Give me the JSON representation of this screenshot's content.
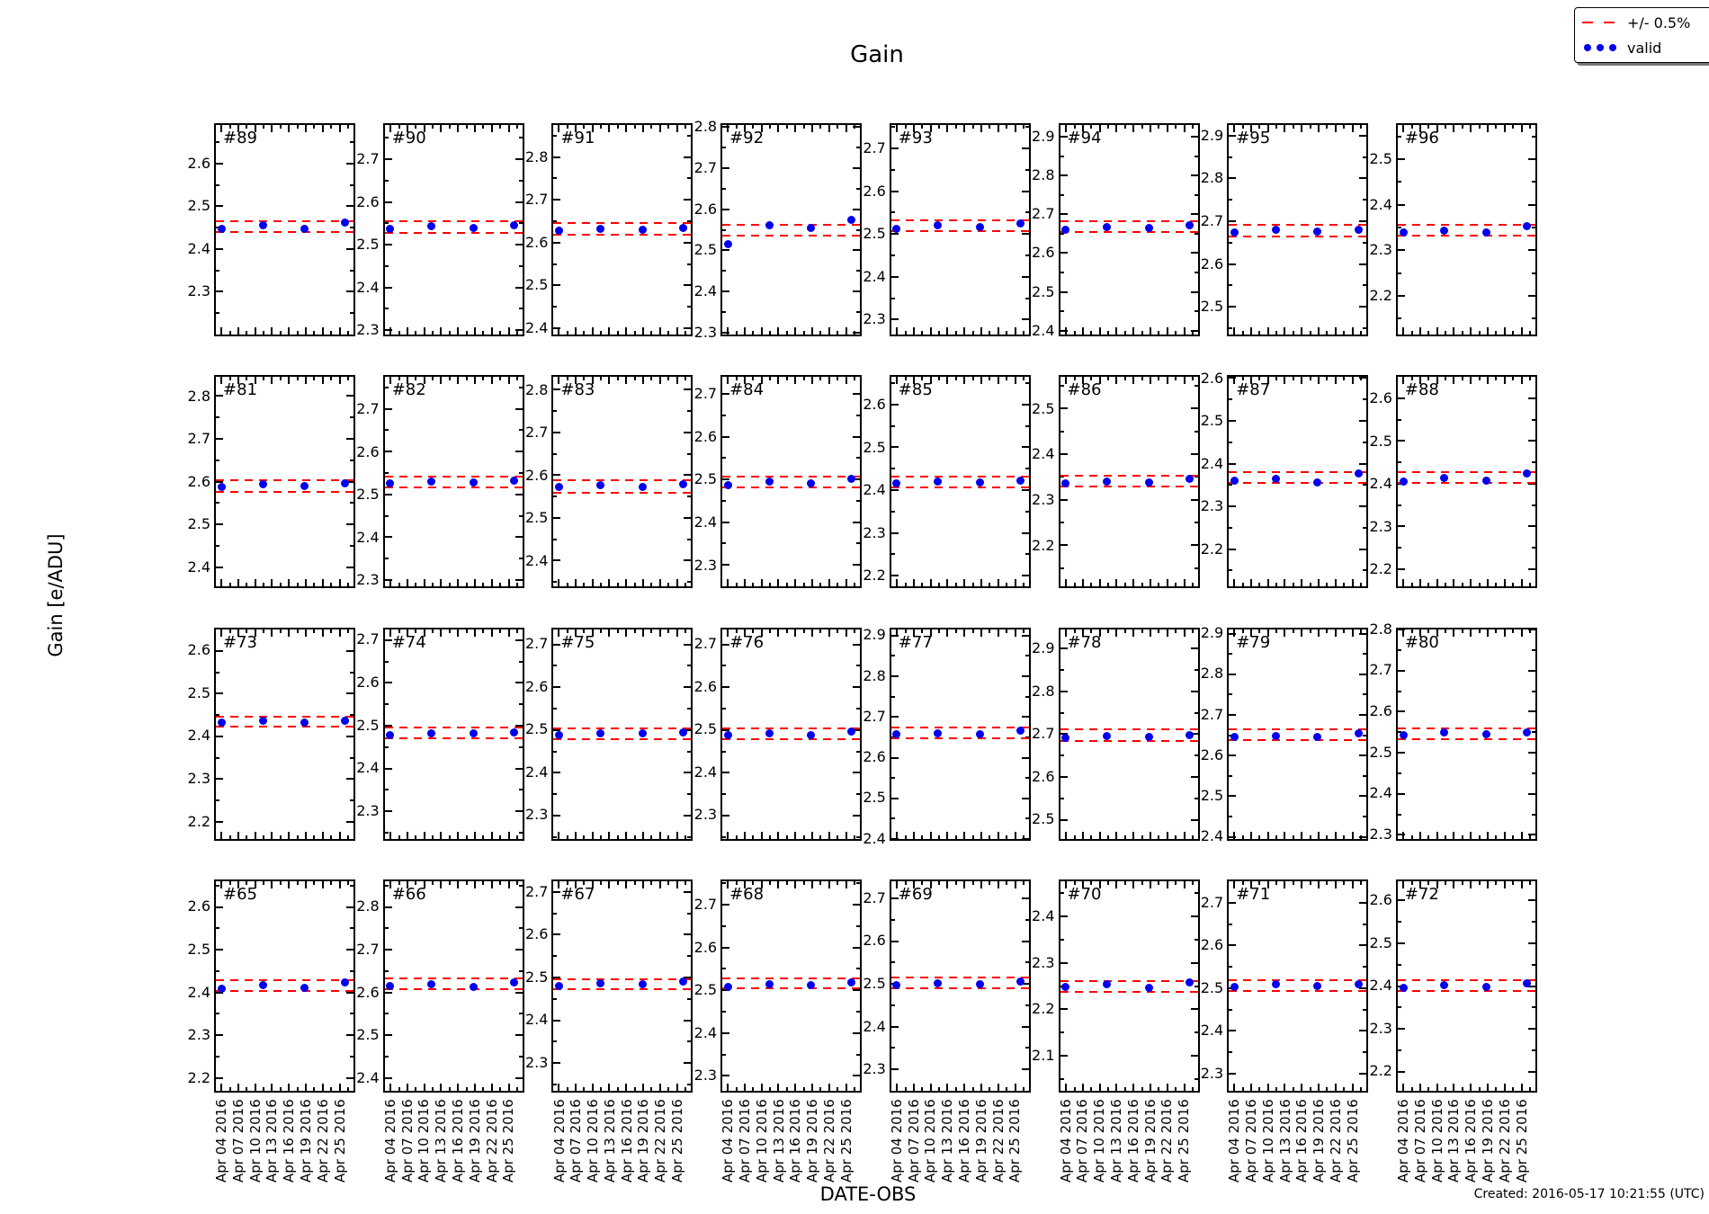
{
  "title": "Gain",
  "y_axis_label": "Gain [e/ADU]",
  "x_axis_label": "DATE-OBS",
  "created_note": "Created: 2016-05-17 10:21:55 (UTC)",
  "colors": {
    "band": "#ff0000",
    "point": "#0000ee"
  },
  "legend": {
    "entries": [
      {
        "label": "+/- 0.5%",
        "sample": "red-dashed-line"
      },
      {
        "label": "valid",
        "sample": "blue-dots"
      }
    ]
  },
  "chart_data": {
    "type": "scatter",
    "description": "4x8 grid of per-amplifier gain trend subplots; blue dots = valid gain measurements, red dashed lines = +/-0.5% tolerance band around the mean",
    "x_tick_labels": [
      "Apr 04 2016",
      "Apr 07 2016",
      "Apr 10 2016",
      "Apr 13 2016",
      "Apr 16 2016",
      "Apr 19 2016",
      "Apr 22 2016",
      "Apr 25 2016"
    ],
    "x_major_tick_rel": [
      0.04,
      0.1628,
      0.2856,
      0.4084,
      0.5312,
      0.654,
      0.7768,
      0.8996
    ],
    "point_x_rel": [
      0.04,
      0.34,
      0.645,
      0.94
    ],
    "point_dates_approx": [
      "Apr 04 2016",
      "Apr 12 2016",
      "Apr 19 2016",
      "Apr 26 2016"
    ],
    "grid": {
      "rows": 4,
      "cols": 8
    },
    "subplots": [
      {
        "id": "#89",
        "ylim": [
          2.2,
          2.69
        ],
        "yticks": [
          2.3,
          2.4,
          2.5,
          2.6
        ],
        "band": [
          2.44,
          2.465
        ],
        "points": [
          2.447,
          2.455,
          2.448,
          2.462
        ]
      },
      {
        "id": "#90",
        "ylim": [
          2.29,
          2.78
        ],
        "yticks": [
          2.3,
          2.4,
          2.5,
          2.6,
          2.7
        ],
        "band": [
          2.528,
          2.554
        ],
        "points": [
          2.538,
          2.543,
          2.54,
          2.545
        ]
      },
      {
        "id": "#91",
        "ylim": [
          2.385,
          2.875
        ],
        "yticks": [
          2.4,
          2.5,
          2.6,
          2.7,
          2.8
        ],
        "band": [
          2.618,
          2.645
        ],
        "points": [
          2.628,
          2.632,
          2.63,
          2.634
        ]
      },
      {
        "id": "#92",
        "ylim": [
          2.295,
          2.805
        ],
        "yticks": [
          2.3,
          2.4,
          2.5,
          2.6,
          2.7,
          2.8
        ],
        "band": [
          2.536,
          2.562
        ],
        "points": [
          2.515,
          2.562,
          2.555,
          2.574
        ]
      },
      {
        "id": "#93",
        "ylim": [
          2.265,
          2.755
        ],
        "yticks": [
          2.3,
          2.4,
          2.5,
          2.6,
          2.7
        ],
        "band": [
          2.507,
          2.532
        ],
        "points": [
          2.513,
          2.52,
          2.516,
          2.524
        ]
      },
      {
        "id": "#94",
        "ylim": [
          2.39,
          2.93
        ],
        "yticks": [
          2.4,
          2.5,
          2.6,
          2.7,
          2.8,
          2.9
        ],
        "band": [
          2.654,
          2.681
        ],
        "points": [
          2.66,
          2.666,
          2.664,
          2.671
        ]
      },
      {
        "id": "#95",
        "ylim": [
          2.435,
          2.925
        ],
        "yticks": [
          2.5,
          2.6,
          2.7,
          2.8,
          2.9
        ],
        "band": [
          2.664,
          2.691
        ],
        "points": [
          2.674,
          2.679,
          2.676,
          2.681
        ]
      },
      {
        "id": "#96",
        "ylim": [
          2.115,
          2.575
        ],
        "yticks": [
          2.2,
          2.3,
          2.4,
          2.5
        ],
        "band": [
          2.333,
          2.356
        ],
        "points": [
          2.339,
          2.343,
          2.34,
          2.352
        ]
      },
      {
        "id": "#81",
        "ylim": [
          2.355,
          2.845
        ],
        "yticks": [
          2.4,
          2.5,
          2.6,
          2.7,
          2.8
        ],
        "band": [
          2.577,
          2.603
        ],
        "points": [
          2.589,
          2.594,
          2.591,
          2.596
        ]
      },
      {
        "id": "#82",
        "ylim": [
          2.285,
          2.775
        ],
        "yticks": [
          2.3,
          2.4,
          2.5,
          2.6,
          2.7
        ],
        "band": [
          2.517,
          2.543
        ],
        "points": [
          2.527,
          2.531,
          2.528,
          2.533
        ]
      },
      {
        "id": "#83",
        "ylim": [
          2.34,
          2.83
        ],
        "yticks": [
          2.4,
          2.5,
          2.6,
          2.7,
          2.8
        ],
        "band": [
          2.559,
          2.589
        ],
        "points": [
          2.574,
          2.578,
          2.574,
          2.58
        ]
      },
      {
        "id": "#84",
        "ylim": [
          2.25,
          2.74
        ],
        "yticks": [
          2.3,
          2.4,
          2.5,
          2.6,
          2.7
        ],
        "band": [
          2.483,
          2.508
        ],
        "points": [
          2.488,
          2.495,
          2.492,
          2.501
        ]
      },
      {
        "id": "#85",
        "ylim": [
          2.175,
          2.665
        ],
        "yticks": [
          2.2,
          2.3,
          2.4,
          2.5,
          2.6
        ],
        "band": [
          2.408,
          2.432
        ],
        "points": [
          2.417,
          2.421,
          2.419,
          2.423
        ]
      },
      {
        "id": "#86",
        "ylim": [
          2.11,
          2.57
        ],
        "yticks": [
          2.2,
          2.3,
          2.4,
          2.5
        ],
        "band": [
          2.329,
          2.353
        ],
        "points": [
          2.336,
          2.341,
          2.339,
          2.346
        ]
      },
      {
        "id": "#87",
        "ylim": [
          2.113,
          2.603
        ],
        "yticks": [
          2.2,
          2.3,
          2.4,
          2.5,
          2.6
        ],
        "band": [
          2.356,
          2.38
        ],
        "points": [
          2.361,
          2.364,
          2.357,
          2.378
        ]
      },
      {
        "id": "#88",
        "ylim": [
          2.16,
          2.65
        ],
        "yticks": [
          2.2,
          2.3,
          2.4,
          2.5,
          2.6
        ],
        "band": [
          2.403,
          2.427
        ],
        "points": [
          2.405,
          2.415,
          2.407,
          2.425
        ]
      },
      {
        "id": "#73",
        "ylim": [
          2.16,
          2.65
        ],
        "yticks": [
          2.2,
          2.3,
          2.4,
          2.5,
          2.6
        ],
        "band": [
          2.421,
          2.446
        ],
        "points": [
          2.432,
          2.436,
          2.431,
          2.436
        ]
      },
      {
        "id": "#74",
        "ylim": [
          2.235,
          2.725
        ],
        "yticks": [
          2.3,
          2.4,
          2.5,
          2.6,
          2.7
        ],
        "band": [
          2.469,
          2.494
        ],
        "points": [
          2.478,
          2.482,
          2.481,
          2.484
        ]
      },
      {
        "id": "#75",
        "ylim": [
          2.245,
          2.735
        ],
        "yticks": [
          2.3,
          2.4,
          2.5,
          2.6,
          2.7
        ],
        "band": [
          2.478,
          2.503
        ],
        "points": [
          2.487,
          2.492,
          2.491,
          2.494
        ]
      },
      {
        "id": "#76",
        "ylim": [
          2.245,
          2.735
        ],
        "yticks": [
          2.3,
          2.4,
          2.5,
          2.6,
          2.7
        ],
        "band": [
          2.477,
          2.502
        ],
        "points": [
          2.487,
          2.491,
          2.486,
          2.495
        ]
      },
      {
        "id": "#77",
        "ylim": [
          2.4,
          2.915
        ],
        "yticks": [
          2.4,
          2.5,
          2.6,
          2.7,
          2.8,
          2.9
        ],
        "band": [
          2.646,
          2.673
        ],
        "points": [
          2.657,
          2.659,
          2.657,
          2.665
        ]
      },
      {
        "id": "#78",
        "ylim": [
          2.455,
          2.945
        ],
        "yticks": [
          2.5,
          2.6,
          2.7,
          2.8,
          2.9
        ],
        "band": [
          2.683,
          2.71
        ],
        "points": [
          2.69,
          2.695,
          2.693,
          2.696
        ]
      },
      {
        "id": "#79",
        "ylim": [
          2.395,
          2.91
        ],
        "yticks": [
          2.4,
          2.5,
          2.6,
          2.7,
          2.8,
          2.9
        ],
        "band": [
          2.637,
          2.663
        ],
        "points": [
          2.645,
          2.648,
          2.646,
          2.653
        ]
      },
      {
        "id": "#80",
        "ylim": [
          2.29,
          2.8
        ],
        "yticks": [
          2.3,
          2.4,
          2.5,
          2.6,
          2.7,
          2.8
        ],
        "band": [
          2.533,
          2.559
        ],
        "points": [
          2.543,
          2.548,
          2.544,
          2.549
        ]
      },
      {
        "id": "#65",
        "ylim": [
          2.17,
          2.66
        ],
        "yticks": [
          2.2,
          2.3,
          2.4,
          2.5,
          2.6
        ],
        "band": [
          2.404,
          2.428
        ],
        "points": [
          2.408,
          2.417,
          2.41,
          2.424
        ]
      },
      {
        "id": "#66",
        "ylim": [
          2.37,
          2.86
        ],
        "yticks": [
          2.4,
          2.5,
          2.6,
          2.7,
          2.8
        ],
        "band": [
          2.607,
          2.632
        ],
        "points": [
          2.615,
          2.62,
          2.613,
          2.623
        ]
      },
      {
        "id": "#67",
        "ylim": [
          2.235,
          2.725
        ],
        "yticks": [
          2.3,
          2.4,
          2.5,
          2.6,
          2.7
        ],
        "band": [
          2.472,
          2.496
        ],
        "points": [
          2.48,
          2.487,
          2.483,
          2.49
        ]
      },
      {
        "id": "#68",
        "ylim": [
          2.265,
          2.755
        ],
        "yticks": [
          2.3,
          2.4,
          2.5,
          2.6,
          2.7
        ],
        "band": [
          2.504,
          2.528
        ],
        "points": [
          2.508,
          2.513,
          2.511,
          2.519
        ]
      },
      {
        "id": "#69",
        "ylim": [
          2.25,
          2.74
        ],
        "yticks": [
          2.3,
          2.4,
          2.5,
          2.6,
          2.7
        ],
        "band": [
          2.489,
          2.514
        ],
        "points": [
          2.497,
          2.502,
          2.499,
          2.505
        ]
      },
      {
        "id": "#70",
        "ylim": [
          2.025,
          2.475
        ],
        "yticks": [
          2.1,
          2.2,
          2.3,
          2.4
        ],
        "band": [
          2.238,
          2.261
        ],
        "points": [
          2.247,
          2.254,
          2.246,
          2.257
        ]
      },
      {
        "id": "#71",
        "ylim": [
          2.26,
          2.75
        ],
        "yticks": [
          2.3,
          2.4,
          2.5,
          2.6,
          2.7
        ],
        "band": [
          2.494,
          2.519
        ],
        "points": [
          2.502,
          2.508,
          2.505,
          2.51
        ]
      },
      {
        "id": "#72",
        "ylim": [
          2.155,
          2.645
        ],
        "yticks": [
          2.2,
          2.3,
          2.4,
          2.5,
          2.6
        ],
        "band": [
          2.389,
          2.413
        ],
        "points": [
          2.395,
          2.401,
          2.397,
          2.407
        ]
      }
    ]
  }
}
